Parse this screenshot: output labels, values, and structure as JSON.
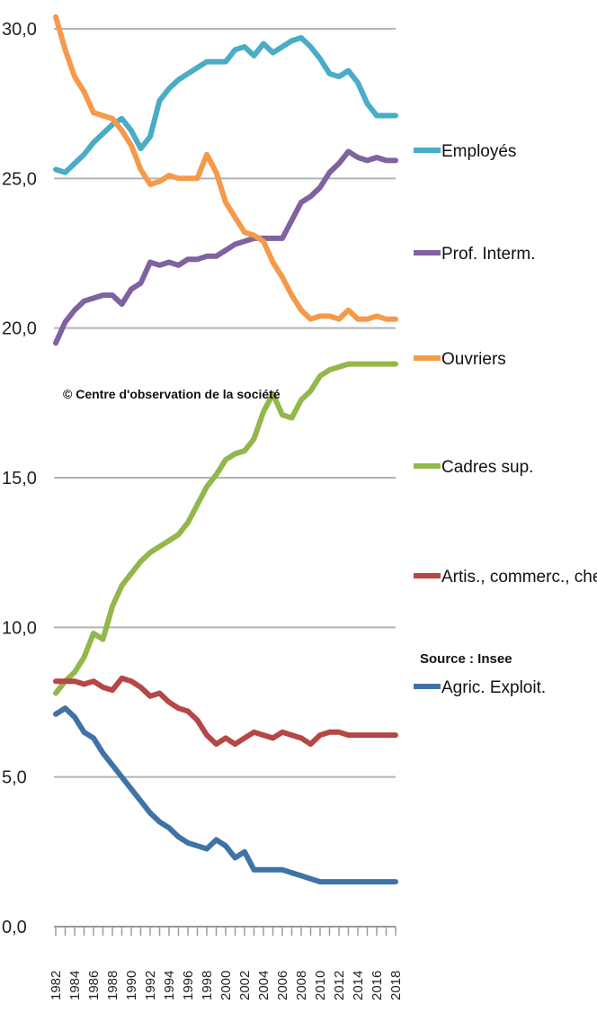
{
  "chart_data": {
    "type": "line",
    "title": "",
    "xlabel": "",
    "ylabel": "",
    "ylim": [
      0,
      30
    ],
    "y_ticks": [
      "0,0",
      "5,0",
      "10,0",
      "15,0",
      "20,0",
      "25,0",
      "30,0"
    ],
    "x_ticks": [
      "1982",
      "1984",
      "1986",
      "1988",
      "1990",
      "1992",
      "1994",
      "1996",
      "1998",
      "2000",
      "2002",
      "2004",
      "2006",
      "2008",
      "2010",
      "2012",
      "2014",
      "2016",
      "2018"
    ],
    "x": [
      1982,
      1983,
      1984,
      1985,
      1986,
      1987,
      1988,
      1989,
      1990,
      1991,
      1992,
      1993,
      1994,
      1995,
      1996,
      1997,
      1998,
      1999,
      2000,
      2001,
      2002,
      2003,
      2004,
      2005,
      2006,
      2007,
      2008,
      2009,
      2010,
      2011,
      2012,
      2013,
      2014,
      2015,
      2016,
      2017,
      2018
    ],
    "grid": true,
    "legend_position": "right",
    "series": [
      {
        "name": "Employés",
        "color": "#4aacc6",
        "values": [
          25.3,
          25.2,
          25.5,
          25.8,
          26.2,
          26.5,
          26.8,
          27.0,
          26.6,
          26.0,
          26.4,
          27.6,
          28.0,
          28.3,
          28.5,
          28.7,
          28.9,
          28.9,
          28.9,
          29.3,
          29.4,
          29.1,
          29.5,
          29.2,
          29.4,
          29.6,
          29.7,
          29.4,
          29.0,
          28.5,
          28.4,
          28.6,
          28.2,
          27.5,
          27.1,
          27.1,
          27.1
        ]
      },
      {
        "name": "Prof. Interm.",
        "color": "#7f62a0",
        "values": [
          19.5,
          20.2,
          20.6,
          20.9,
          21.0,
          21.1,
          21.1,
          20.8,
          21.3,
          21.5,
          22.2,
          22.1,
          22.2,
          22.1,
          22.3,
          22.3,
          22.4,
          22.4,
          22.6,
          22.8,
          22.9,
          23.0,
          23.0,
          23.0,
          23.0,
          23.6,
          24.2,
          24.4,
          24.7,
          25.2,
          25.5,
          25.9,
          25.7,
          25.6,
          25.7,
          25.6,
          25.6
        ]
      },
      {
        "name": "Ouvriers",
        "color": "#f59a4a",
        "values": [
          30.4,
          29.3,
          28.4,
          27.9,
          27.2,
          27.1,
          27.0,
          26.6,
          26.1,
          25.3,
          24.8,
          24.9,
          25.1,
          25.0,
          25.0,
          25.0,
          25.8,
          25.2,
          24.2,
          23.7,
          23.2,
          23.1,
          22.9,
          22.2,
          21.7,
          21.1,
          20.6,
          20.3,
          20.4,
          20.4,
          20.3,
          20.6,
          20.3,
          20.3,
          20.4,
          20.3,
          20.3
        ]
      },
      {
        "name": "Cadres sup.",
        "color": "#93b74a",
        "values": [
          7.8,
          8.2,
          8.5,
          9.0,
          9.8,
          9.6,
          10.7,
          11.4,
          11.8,
          12.2,
          12.5,
          12.7,
          12.9,
          13.1,
          13.5,
          14.1,
          14.7,
          15.1,
          15.6,
          15.8,
          15.9,
          16.3,
          17.2,
          17.8,
          17.1,
          17.0,
          17.6,
          17.9,
          18.4,
          18.6,
          18.7,
          18.8,
          18.8,
          18.8,
          18.8,
          18.8,
          18.8
        ]
      },
      {
        "name": "Artis., commerc., chef ep.",
        "color": "#b54745",
        "values": [
          8.2,
          8.2,
          8.2,
          8.1,
          8.2,
          8.0,
          7.9,
          8.3,
          8.2,
          8.0,
          7.7,
          7.8,
          7.5,
          7.3,
          7.2,
          6.9,
          6.4,
          6.1,
          6.3,
          6.1,
          6.3,
          6.5,
          6.4,
          6.3,
          6.5,
          6.4,
          6.3,
          6.1,
          6.4,
          6.5,
          6.5,
          6.4,
          6.4,
          6.4,
          6.4,
          6.4,
          6.4
        ]
      },
      {
        "name": "Agric. Exploit.",
        "color": "#3f73a6",
        "values": [
          7.1,
          7.3,
          7.0,
          6.5,
          6.3,
          5.8,
          5.4,
          5.0,
          4.6,
          4.2,
          3.8,
          3.5,
          3.3,
          3.0,
          2.8,
          2.7,
          2.6,
          2.9,
          2.7,
          2.3,
          2.5,
          1.9,
          1.9,
          1.9,
          1.9,
          1.8,
          1.7,
          1.6,
          1.5,
          1.5,
          1.5,
          1.5,
          1.5,
          1.5,
          1.5,
          1.5,
          1.5
        ]
      }
    ],
    "annotations": [
      "© Centre d'observation de la société",
      "Source : Insee"
    ]
  }
}
